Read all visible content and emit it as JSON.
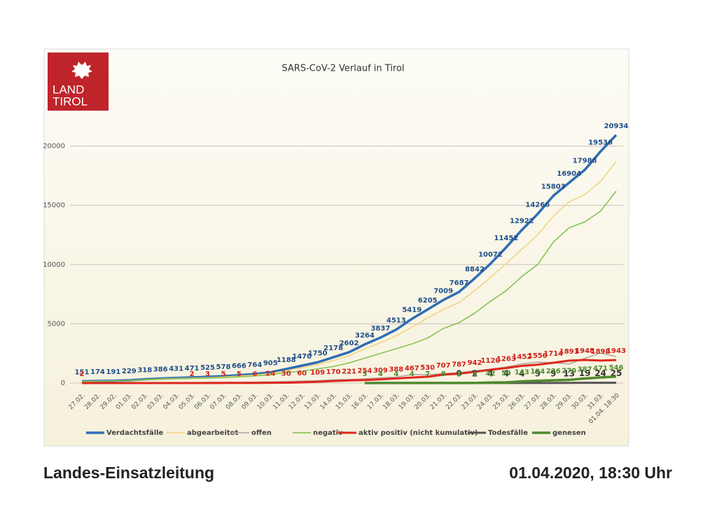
{
  "chart_data": {
    "type": "line",
    "title": "SARS-CoV-2  Verlauf in Tirol",
    "logo": [
      "LAND",
      "TIROL"
    ],
    "categories": [
      "27.02.",
      "28.02.",
      "29.02.",
      "01.03.",
      "02.03.",
      "03.03.",
      "04.03.",
      "05.03.",
      "06.03.",
      "07.03.",
      "08.03.",
      "09.03.",
      "10.03.",
      "11.03.",
      "12.03.",
      "13.03.",
      "14.03.",
      "15.03.",
      "16.03.",
      "17.03.",
      "18.03.",
      "19.03.",
      "20.03.",
      "21.03.",
      "22.03.",
      "23.03.",
      "24.03.",
      "25.03.",
      "26.03.",
      "27.03.",
      "28.03.",
      "29.03.",
      "30.03.",
      "31.03.",
      "01.04. 18:30"
    ],
    "ylim": [
      0,
      25000
    ],
    "yticks": [
      0,
      5000,
      10000,
      15000,
      20000
    ],
    "grid": true,
    "series": [
      {
        "name": "Verdachtsfälle",
        "color": "#2e6db3",
        "width": 3.5,
        "label_color": "#1f4f8a",
        "data_labels": true,
        "values": [
          151,
          174,
          191,
          229,
          318,
          386,
          431,
          471,
          525,
          578,
          666,
          764,
          905,
          1188,
          1470,
          1750,
          2178,
          2602,
          3264,
          3837,
          4513,
          5419,
          6205,
          7009,
          7687,
          8842,
          10072,
          11452,
          12922,
          14266,
          15803,
          16904,
          17988,
          19536,
          20934
        ]
      },
      {
        "name": "abgearbeitet",
        "color": "#f3d27a",
        "width": 1.5,
        "values": [
          140,
          160,
          175,
          210,
          290,
          350,
          390,
          420,
          460,
          510,
          590,
          680,
          800,
          1050,
          1300,
          1550,
          1900,
          2300,
          2900,
          3400,
          4000,
          4700,
          5500,
          6200,
          6800,
          7800,
          8900,
          10100,
          11300,
          12500,
          14100,
          15300,
          15900,
          17000,
          18700
        ]
      },
      {
        "name": "offen",
        "color": "#b3a3a3",
        "width": 1.5,
        "values": [
          11,
          14,
          16,
          19,
          28,
          36,
          41,
          51,
          65,
          68,
          76,
          84,
          105,
          138,
          170,
          200,
          278,
          302,
          364,
          437,
          513,
          719,
          705,
          809,
          887,
          1042,
          1172,
          1352,
          1622,
          1766,
          1703,
          1604,
          2088,
          2536,
          2234
        ]
      },
      {
        "name": "negativ",
        "color": "#7dc14a",
        "width": 1.5,
        "values": [
          130,
          150,
          165,
          200,
          270,
          320,
          360,
          390,
          420,
          460,
          520,
          600,
          700,
          900,
          1000,
          1200,
          1400,
          1700,
          2100,
          2500,
          2900,
          3300,
          3800,
          4600,
          5100,
          5900,
          6900,
          7800,
          9000,
          10000,
          11900,
          13100,
          13600,
          14500,
          16200
        ]
      },
      {
        "name": "aktiv positiv (nicht kumulativ)",
        "color": "#e0261b",
        "width": 3,
        "label_color": "#d0201a",
        "values": [
          2,
          0,
          0,
          0,
          0,
          0,
          0,
          2,
          3,
          5,
          5,
          6,
          24,
          30,
          60,
          109,
          170,
          221,
          254,
          309,
          388,
          467,
          530,
          707,
          787,
          942,
          1120,
          1263,
          1452,
          1550,
          1714,
          1891,
          1948,
          1898,
          1943
        ],
        "value_labels": [
          "2",
          null,
          null,
          null,
          null,
          null,
          null,
          "2",
          "3",
          "5",
          "5",
          "6",
          "24",
          "30",
          "60",
          "109",
          "170",
          "221",
          "254",
          "309",
          "388",
          "467",
          "530",
          "707",
          "787",
          "942",
          "1120",
          "1263",
          "1452",
          "1550",
          "1714",
          "1891",
          "1948",
          "1898",
          "1943"
        ]
      },
      {
        "name": "Todesfälle",
        "color": "#555555",
        "width": 3,
        "label_color": "#333333",
        "data_labels": true,
        "label_size": 12,
        "values": [
          null,
          null,
          null,
          null,
          null,
          null,
          null,
          null,
          null,
          null,
          null,
          null,
          null,
          null,
          null,
          null,
          null,
          null,
          null,
          null,
          null,
          null,
          null,
          null,
          0,
          2,
          4,
          4,
          4,
          9,
          9,
          13,
          19,
          24,
          25
        ]
      },
      {
        "name": "genesen",
        "color": "#4e8a2e",
        "width": 3.5,
        "label_color": "#4e8a2e",
        "data_labels": true,
        "values": [
          null,
          null,
          null,
          null,
          null,
          null,
          null,
          null,
          null,
          null,
          null,
          null,
          null,
          null,
          null,
          null,
          null,
          null,
          3,
          4,
          4,
          4,
          7,
          8,
          8,
          8,
          42,
          59,
          143,
          194,
          226,
          270,
          387,
          471,
          546
        ]
      }
    ]
  },
  "footer": {
    "left": "Landes-Einsatzleitung",
    "right": "01.04.2020, 18:30 Uhr"
  }
}
